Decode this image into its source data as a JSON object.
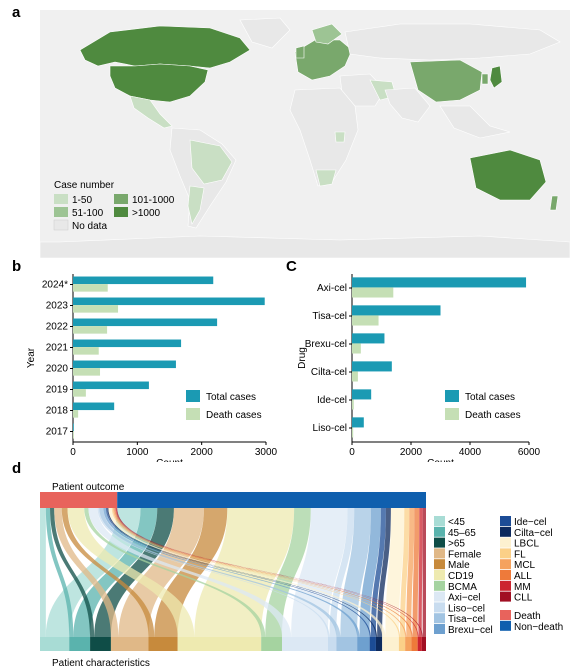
{
  "panels": {
    "a": {
      "letter": "a",
      "legend": {
        "title": "Case number",
        "items": [
          {
            "label": "1-50",
            "color": "#c9dfc4"
          },
          {
            "label": "51-100",
            "color": "#9dc494"
          },
          {
            "label": "101-1000",
            "color": "#79a86c"
          },
          {
            "label": ">1000",
            "color": "#4f8a3f"
          },
          {
            "label": "No data",
            "color": "#e8e8e8"
          }
        ]
      }
    },
    "b": {
      "letter": "b"
    },
    "c": {
      "letter": "C"
    },
    "d": {
      "letter": "d",
      "top_label": "Patient outcome",
      "bottom_label": "Patient characteristics"
    }
  },
  "chart_data": [
    {
      "type": "bar",
      "orientation": "horizontal",
      "categories": [
        "2024*",
        "2023",
        "2022",
        "2021",
        "2020",
        "2019",
        "2018",
        "2017"
      ],
      "series": [
        {
          "name": "Total cases",
          "color": "#1b9ab3",
          "values": [
            2180,
            2980,
            2240,
            1680,
            1600,
            1180,
            640,
            10
          ]
        },
        {
          "name": "Death cases",
          "color": "#c5dfb5",
          "values": [
            540,
            700,
            530,
            400,
            420,
            200,
            80,
            5
          ]
        }
      ],
      "xlabel": "Count",
      "ylabel": "Year",
      "xlim": [
        0,
        3000
      ],
      "xticks": [
        0,
        1000,
        2000,
        3000
      ],
      "legend_position": "bottom-right"
    },
    {
      "type": "bar",
      "orientation": "horizontal",
      "categories": [
        "Axi-cel",
        "Tisa-cel",
        "Brexu-cel",
        "Cilta-cel",
        "Ide-cel",
        "Liso-cel"
      ],
      "series": [
        {
          "name": "Total cases",
          "color": "#1b9ab3",
          "values": [
            5900,
            3000,
            1100,
            1350,
            650,
            400
          ]
        },
        {
          "name": "Death cases",
          "color": "#c5dfb5",
          "values": [
            1400,
            900,
            300,
            200,
            60,
            40
          ]
        }
      ],
      "xlabel": "Count",
      "ylabel": "Drug",
      "xlim": [
        0,
        6000
      ],
      "xticks": [
        0,
        2000,
        4000,
        6000
      ],
      "legend_position": "bottom-right"
    },
    {
      "type": "sankey",
      "top_nodes": [
        {
          "name": "Death",
          "value": 0.2,
          "color": "#e8635c"
        },
        {
          "name": "Non-death",
          "value": 0.8,
          "color": "#0f5fae"
        }
      ],
      "bottom_nodes": [
        {
          "name": "<45",
          "value": 0.07,
          "color": "#a8dcd5"
        },
        {
          "name": "45–65",
          "value": 0.05,
          "color": "#5ab3ad"
        },
        {
          "name": ">65",
          "value": 0.05,
          "color": "#0f4d47"
        },
        {
          "name": "Female",
          "value": 0.09,
          "color": "#e0b887"
        },
        {
          "name": "Male",
          "value": 0.07,
          "color": "#c78a3c"
        },
        {
          "name": "CD19",
          "value": 0.2,
          "color": "#eeeab0"
        },
        {
          "name": "BCMA",
          "value": 0.05,
          "color": "#a5d3a0"
        },
        {
          "name": "Axi-cel",
          "value": 0.11,
          "color": "#dce8f4"
        },
        {
          "name": "Liso-cel",
          "value": 0.02,
          "color": "#c8dcef"
        },
        {
          "name": "Tisa-cel",
          "value": 0.05,
          "color": "#a2c4e2"
        },
        {
          "name": "Brexu-cel",
          "value": 0.03,
          "color": "#6ea0cf"
        },
        {
          "name": "Ide-cel",
          "value": 0.015,
          "color": "#1c4c96"
        },
        {
          "name": "Cilta-cel",
          "value": 0.015,
          "color": "#0d2a5e"
        },
        {
          "name": "LBCL",
          "value": 0.04,
          "color": "#fdf1d0"
        },
        {
          "name": "FL",
          "value": 0.015,
          "color": "#fbd088"
        },
        {
          "name": "MCL",
          "value": 0.015,
          "color": "#f5a25e"
        },
        {
          "name": "ALL",
          "value": 0.015,
          "color": "#ee7a3a"
        },
        {
          "name": "MM",
          "value": 0.01,
          "color": "#cc2430"
        },
        {
          "name": "CLL",
          "value": 0.01,
          "color": "#a10f23"
        }
      ],
      "legend_items": [
        {
          "label": "<45",
          "color": "#a8dcd5"
        },
        {
          "label": "45–65",
          "color": "#5ab3ad"
        },
        {
          "label": ">65",
          "color": "#0f4d47"
        },
        {
          "label": "Female",
          "color": "#e0b887"
        },
        {
          "label": "Male",
          "color": "#c78a3c"
        },
        {
          "label": "CD19",
          "color": "#eeeab0"
        },
        {
          "label": "BCMA",
          "color": "#a5d3a0"
        },
        {
          "label": "Axi−cel",
          "color": "#dce8f4"
        },
        {
          "label": "Liso−cel",
          "color": "#c8dcef"
        },
        {
          "label": "Tisa−cel",
          "color": "#a2c4e2"
        },
        {
          "label": "Brexu−cel",
          "color": "#6ea0cf"
        },
        {
          "label": "Ide−cel",
          "color": "#1c4c96"
        },
        {
          "label": "Cilta−cel",
          "color": "#0d2a5e"
        },
        {
          "label": "LBCL",
          "color": "#fdf1d0"
        },
        {
          "label": "FL",
          "color": "#fbd088"
        },
        {
          "label": "MCL",
          "color": "#f5a25e"
        },
        {
          "label": "ALL",
          "color": "#ee7a3a"
        },
        {
          "label": "MM",
          "color": "#cc2430"
        },
        {
          "label": "CLL",
          "color": "#a10f23"
        },
        {
          "label": "Death",
          "color": "#e8635c"
        },
        {
          "label": "Non−death",
          "color": "#0f5fae"
        }
      ]
    }
  ]
}
